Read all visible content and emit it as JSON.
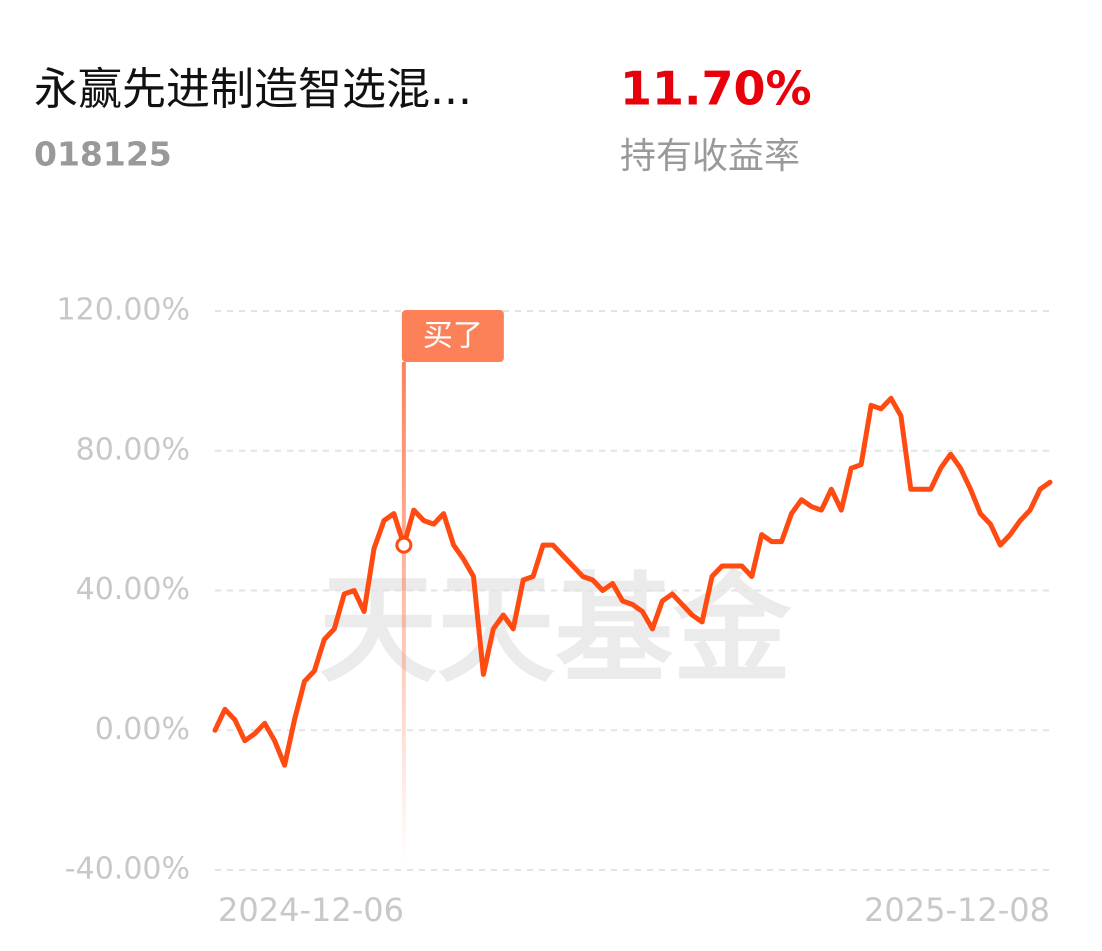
{
  "header": {
    "title": "永赢先进制造智选混...",
    "code": "018125",
    "return_value": "11.70%",
    "return_label": "持有收益率"
  },
  "chart_data": {
    "type": "line",
    "watermark": "天天基金",
    "annotation": {
      "label": "买了",
      "index": 19
    },
    "categories": [
      "2024-12-06",
      null,
      null,
      null,
      null,
      null,
      null,
      null,
      null,
      null,
      null,
      null,
      null,
      null,
      null,
      null,
      null,
      null,
      null,
      null,
      null,
      null,
      null,
      null,
      null,
      null,
      null,
      null,
      null,
      null,
      null,
      null,
      null,
      null,
      null,
      null,
      null,
      null,
      null,
      null,
      null,
      null,
      null,
      null,
      null,
      null,
      null,
      null,
      null,
      null,
      null,
      null,
      null,
      null,
      null,
      null,
      null,
      null,
      null,
      null,
      null,
      null,
      null,
      null,
      null,
      null,
      null,
      null,
      null,
      null,
      null,
      null,
      null,
      null,
      null,
      null,
      null,
      null,
      null,
      null,
      null,
      null,
      null,
      null,
      "2025-12-08"
    ],
    "series": [
      {
        "name": "收益率",
        "color": "#ff4a12",
        "values": [
          0,
          6,
          3,
          -3,
          -1,
          2,
          -3,
          -10,
          3,
          14,
          17,
          26,
          29,
          39,
          40,
          34,
          52,
          60,
          62,
          53,
          63,
          60,
          59,
          62,
          53,
          49,
          44,
          16,
          29,
          33,
          29,
          43,
          44,
          53,
          53,
          50,
          47,
          44,
          43,
          40,
          42,
          37,
          36,
          34,
          29,
          37,
          39,
          36,
          33,
          31,
          44,
          47,
          47,
          47,
          44,
          56,
          54,
          54,
          62,
          66,
          64,
          63,
          69,
          63,
          75,
          76,
          93,
          92,
          95,
          90,
          69,
          69,
          69,
          75,
          79,
          75,
          69,
          62,
          59,
          53,
          56,
          60,
          63,
          69,
          71
        ]
      }
    ],
    "ylim": [
      -40,
      120
    ],
    "yticks": [
      {
        "value": -40,
        "label": "-40.00%"
      },
      {
        "value": 0,
        "label": "0.00%"
      },
      {
        "value": 40,
        "label": "40.00%"
      },
      {
        "value": 80,
        "label": "80.00%"
      },
      {
        "value": 120,
        "label": "120.00%"
      }
    ],
    "grid": true
  }
}
